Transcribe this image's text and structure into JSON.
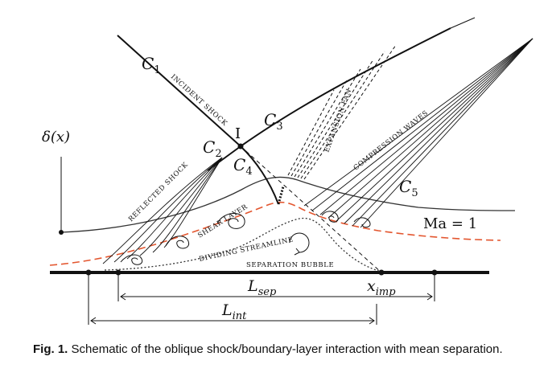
{
  "labels": {
    "c1": "C",
    "c1_sub": "1",
    "c2": "C",
    "c2_sub": "2",
    "c3": "C",
    "c3_sub": "3",
    "c4": "C",
    "c4_sub": "4",
    "c5": "C",
    "c5_sub": "5",
    "point_i": "I",
    "delta": "δ(x)",
    "incident_shock": "INCIDENT SHOCK",
    "reflected_shock": "REFLECTED SHOCK",
    "expansion_fan": "EXPANSION FAN",
    "compression_waves": "COMPRESSION WAVES",
    "shear_layer": "SHEAR LAYER",
    "dividing_streamline": "DIVIDING STREAMLINE",
    "separation_bubble": "SEPARATION BUBBLE",
    "mach": "Ma = 1",
    "l_sep": "L",
    "l_sep_sub": "sep",
    "x_imp": "x",
    "x_imp_sub": "imp",
    "l_int": "L",
    "l_int_sub": "int"
  },
  "caption": {
    "label": "Fig. 1.",
    "text": " Schematic of the oblique shock/boundary-layer interaction with mean separation."
  }
}
